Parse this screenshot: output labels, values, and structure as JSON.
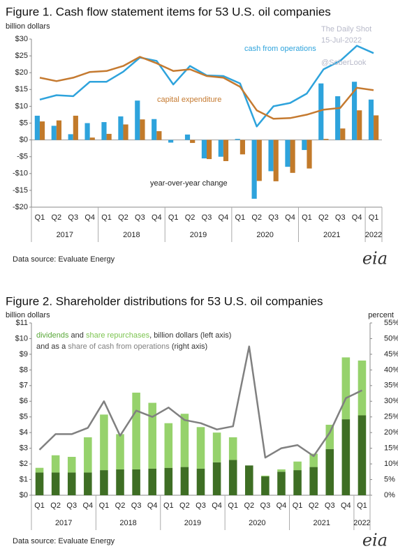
{
  "chart_data": [
    {
      "type": "bar",
      "title": "Figure 1. Cash flow statement items for 53 U.S. oil companies",
      "y_label": "billion dollars",
      "categories": [
        "Q1",
        "Q2",
        "Q3",
        "Q4",
        "Q1",
        "Q2",
        "Q3",
        "Q4",
        "Q1",
        "Q2",
        "Q3",
        "Q4",
        "Q1",
        "Q2",
        "Q3",
        "Q4",
        "Q1",
        "Q2",
        "Q3",
        "Q4",
        "Q1"
      ],
      "x_groups": [
        "2017",
        "2018",
        "2019",
        "2020",
        "2021",
        "2022"
      ],
      "ylim": [
        -20,
        30
      ],
      "yticks": [
        {
          "value": -20,
          "label": "-$20"
        },
        {
          "value": -15,
          "label": "-$15"
        },
        {
          "value": -10,
          "label": "-$10"
        },
        {
          "value": -5,
          "label": "-$5"
        },
        {
          "value": 0,
          "label": "$0"
        },
        {
          "value": 5,
          "label": "$5"
        },
        {
          "value": 10,
          "label": "$10"
        },
        {
          "value": 15,
          "label": "$15"
        },
        {
          "value": 20,
          "label": "$20"
        },
        {
          "value": 25,
          "label": "$25"
        },
        {
          "value": 30,
          "label": "$30"
        }
      ],
      "series": [
        {
          "name": "cash from operations",
          "type": "line",
          "color": "#2ea3dc",
          "values": [
            12,
            13.3,
            13,
            17.3,
            17.3,
            20.3,
            24.5,
            23.5,
            16.5,
            22,
            19.2,
            19,
            16.8,
            4,
            10,
            11,
            13.8,
            21,
            23.5,
            28,
            25.8
          ]
        },
        {
          "name": "capital expenditure",
          "type": "line",
          "color": "#c57a30",
          "values": [
            18.5,
            17.5,
            18.5,
            20.2,
            20.5,
            22,
            24.7,
            22.8,
            20.5,
            21,
            19,
            18.5,
            15.8,
            8.8,
            6.3,
            6.5,
            7.5,
            9,
            9.5,
            15.5,
            14.8
          ]
        },
        {
          "type": "bar",
          "color": "#2ea3dc",
          "values": [
            7.2,
            4.2,
            1.7,
            5,
            5.3,
            7,
            11.7,
            6.2,
            -0.8,
            1.6,
            -5.5,
            -5,
            0.3,
            -17.5,
            -9.3,
            -8,
            -3,
            16.8,
            13,
            17.3,
            12
          ]
        },
        {
          "type": "bar",
          "color": "#c27a2a",
          "values": [
            5.5,
            5.8,
            7.2,
            0.7,
            1.8,
            4.6,
            6.1,
            2.6,
            0,
            -0.9,
            -5.7,
            -6.3,
            -4.3,
            -12.2,
            -12.3,
            -9.8,
            -8.5,
            0.3,
            3.4,
            8.8,
            7.3
          ]
        }
      ],
      "annotation": "year-over-year change",
      "watermark": [
        "The Daily Shot",
        "15-Jul-2022",
        "@SoberLook"
      ],
      "source": "Data source: Evaluate Energy",
      "logo": "eia"
    },
    {
      "type": "bar",
      "stacked": true,
      "title": "Figure 2. Shareholder distributions for 53 U.S. oil companies",
      "y_label": "billion dollars",
      "y2_label": "percent",
      "categories": [
        "Q1",
        "Q2",
        "Q3",
        "Q4",
        "Q1",
        "Q2",
        "Q3",
        "Q4",
        "Q1",
        "Q2",
        "Q3",
        "Q4",
        "Q1",
        "Q2",
        "Q3",
        "Q4",
        "Q1",
        "Q2",
        "Q3",
        "Q4",
        "Q1"
      ],
      "x_groups": [
        "2017",
        "2018",
        "2019",
        "2020",
        "2021",
        "2022"
      ],
      "ylim": [
        0,
        11
      ],
      "yticks": [
        {
          "value": 0,
          "label": "$0"
        },
        {
          "value": 1,
          "label": "$1"
        },
        {
          "value": 2,
          "label": "$2"
        },
        {
          "value": 3,
          "label": "$3"
        },
        {
          "value": 4,
          "label": "$4"
        },
        {
          "value": 5,
          "label": "$5"
        },
        {
          "value": 6,
          "label": "$6"
        },
        {
          "value": 7,
          "label": "$7"
        },
        {
          "value": 8,
          "label": "$8"
        },
        {
          "value": 9,
          "label": "$9"
        },
        {
          "value": 10,
          "label": "$10"
        },
        {
          "value": 11,
          "label": "$11"
        }
      ],
      "y2lim": [
        0,
        55
      ],
      "y2ticks": [
        {
          "value": 0,
          "label": "0%"
        },
        {
          "value": 5,
          "label": "5%"
        },
        {
          "value": 10,
          "label": "10%"
        },
        {
          "value": 15,
          "label": "15%"
        },
        {
          "value": 20,
          "label": "20%"
        },
        {
          "value": 25,
          "label": "25%"
        },
        {
          "value": 30,
          "label": "30%"
        },
        {
          "value": 35,
          "label": "35%"
        },
        {
          "value": 40,
          "label": "40%"
        },
        {
          "value": 45,
          "label": "45%"
        },
        {
          "value": 50,
          "label": "50%"
        },
        {
          "value": 55,
          "label": "55%"
        }
      ],
      "series": [
        {
          "name": "dividends",
          "type": "bar",
          "color": "#3e6e24",
          "values": [
            1.45,
            1.45,
            1.45,
            1.45,
            1.6,
            1.65,
            1.65,
            1.7,
            1.75,
            1.8,
            1.7,
            2.1,
            2.25,
            1.9,
            1.2,
            1.5,
            1.6,
            1.8,
            2.95,
            4.85,
            5.1
          ]
        },
        {
          "name": "share repurchases",
          "type": "bar",
          "color": "#96d26c",
          "values": [
            0.3,
            1.1,
            1,
            2.25,
            3.55,
            2.25,
            4.9,
            4.2,
            2.85,
            3.4,
            2.65,
            1.9,
            1.45,
            0,
            0.05,
            0.15,
            0.55,
            0.85,
            1.55,
            3.95,
            3.5
          ]
        },
        {
          "name": "share of cash from operations",
          "type": "line",
          "axis": "y2",
          "color": "#808080",
          "values": [
            14.5,
            19.5,
            19.5,
            21.5,
            30,
            19,
            27,
            25,
            28,
            24,
            23,
            21,
            22,
            47.5,
            12,
            15,
            16,
            12.5,
            20,
            31,
            33.5
          ]
        }
      ],
      "legend_text": [
        "and",
        ", billion dollars (left axis)",
        "and as a",
        "(right axis)"
      ],
      "source": "Data source: Evaluate Energy",
      "logo": "eia"
    }
  ]
}
